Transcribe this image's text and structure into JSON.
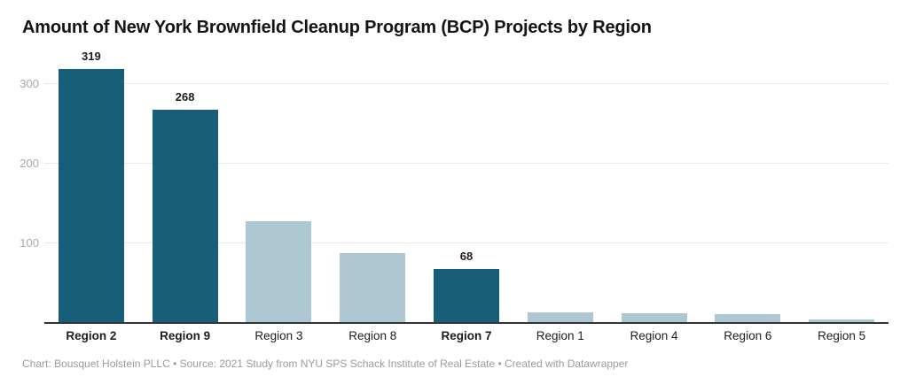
{
  "title": "Amount of New York Brownfield Cleanup Program (BCP) Projects by Region",
  "footer": "Chart: Bousquet Holstein PLLC • Source: 2021 Study from NYU SPS Schack Institute of Real Estate • Created with Datawrapper",
  "colors": {
    "bar_dark": "#175e78",
    "bar_light": "#adc8d2",
    "gridline": "#e9e9e9",
    "baseline": "#333333",
    "tick_text": "#a8a8a8",
    "label_text": "#1d1d1d",
    "footer_text": "#9a9a9a",
    "title_text": "#141414"
  },
  "chart_data": {
    "type": "bar",
    "title": "Amount of New York Brownfield Cleanup Program (BCP) Projects by Region",
    "categories": [
      "Region 2",
      "Region 9",
      "Region 3",
      "Region 8",
      "Region 7",
      "Region 1",
      "Region 4",
      "Region 6",
      "Region 5"
    ],
    "values": [
      319,
      268,
      128,
      88,
      68,
      13,
      12,
      11,
      5
    ],
    "value_labels": [
      "319",
      "268",
      null,
      null,
      "68",
      null,
      null,
      null,
      null
    ],
    "emphasized": [
      true,
      true,
      false,
      false,
      true,
      false,
      false,
      false,
      false
    ],
    "xlabel": "",
    "ylabel": "",
    "yticks": [
      100,
      200,
      300
    ],
    "ylim": [
      0,
      333
    ],
    "grid": "horizontal",
    "legend": "none",
    "sort": "descending"
  }
}
